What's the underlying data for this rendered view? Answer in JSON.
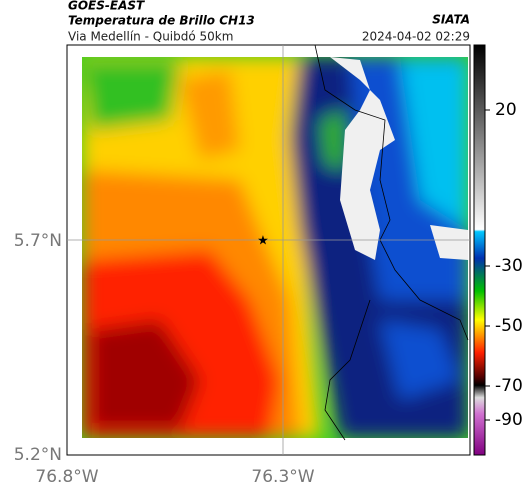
{
  "header": {
    "title": "GOES-EAST",
    "subtitle": "Temperatura de Brillo CH13",
    "location": "Via Medellín - Quibdó 50km",
    "source": "SIATA",
    "timestamp": "2024-04-02 02:29"
  },
  "map": {
    "lat_ticks": [
      "5.7°N",
      "5.2°N"
    ],
    "lon_ticks": [
      "76.8°W",
      "76.3°W"
    ]
  },
  "colorbar": {
    "ticks": [
      "20",
      "-30",
      "-50",
      "-70",
      "-90"
    ]
  }
}
